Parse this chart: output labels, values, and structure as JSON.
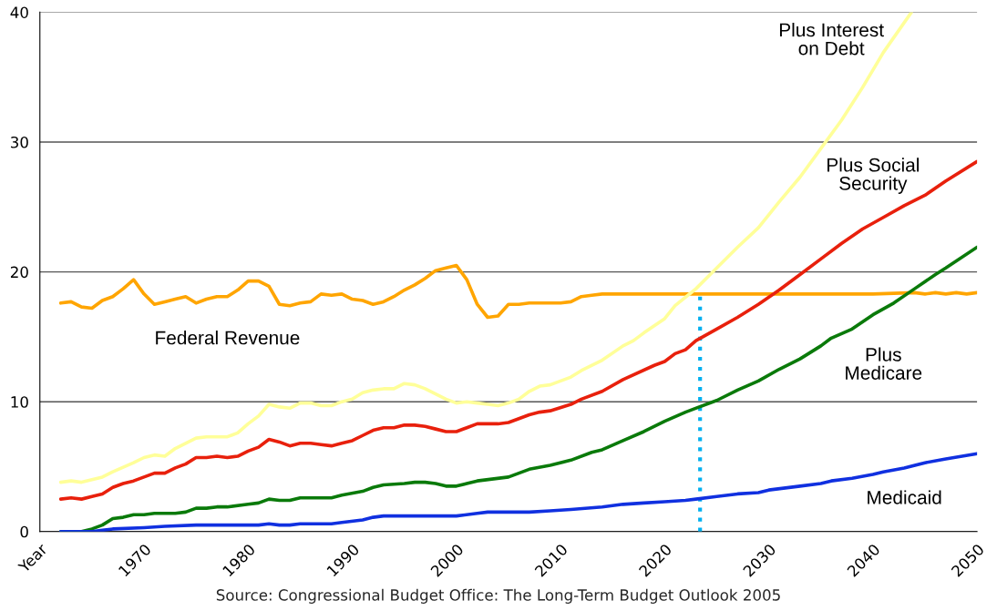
{
  "chart_data": {
    "type": "line",
    "xlim": [
      1960,
      2050
    ],
    "xticks": [
      {
        "value": 1960,
        "label": "Year"
      },
      1970,
      1980,
      1990,
      2000,
      2010,
      2020,
      2030,
      2040,
      2050
    ],
    "ylim": [
      0,
      40
    ],
    "yticks": [
      0,
      10,
      20,
      30,
      40
    ],
    "grid": "y",
    "legend": false,
    "line_style": "solid",
    "marker": "none",
    "annotations": [
      "Source: Congressional Budget Office: The Long-Term Budget Outlook 2005"
    ],
    "series": [
      {
        "name": "Federal Revenue",
        "color": "#ffa500",
        "x": [
          1962,
          1963,
          1964,
          1965,
          1966,
          1967,
          1968,
          1969,
          1970,
          1971,
          1972,
          1973,
          1974,
          1975,
          1976,
          1977,
          1978,
          1979,
          1980,
          1981,
          1982,
          1983,
          1984,
          1985,
          1986,
          1987,
          1988,
          1989,
          1990,
          1991,
          1992,
          1993,
          1994,
          1995,
          1996,
          1997,
          1998,
          1999,
          2000,
          2001,
          2002,
          2003,
          2004,
          2005,
          2006,
          2007,
          2010,
          2011,
          2012,
          2013,
          2014,
          2020,
          2030,
          2040,
          2044,
          2045,
          2046,
          2047,
          2048,
          2049,
          2050
        ],
        "values": [
          17.6,
          17.7,
          17.3,
          17.2,
          17.8,
          18.1,
          18.7,
          19.4,
          18.3,
          17.5,
          17.7,
          17.9,
          18.1,
          17.6,
          17.9,
          18.1,
          18.1,
          18.6,
          19.3,
          19.3,
          18.9,
          17.5,
          17.4,
          17.6,
          17.7,
          18.3,
          18.2,
          18.3,
          17.9,
          17.8,
          17.5,
          17.7,
          18.1,
          18.6,
          19.0,
          19.5,
          20.1,
          20.3,
          20.5,
          19.4,
          17.5,
          16.5,
          16.6,
          17.5,
          17.5,
          17.6,
          17.6,
          17.7,
          18.1,
          18.2,
          18.3,
          18.3,
          18.3,
          18.3,
          18.4,
          18.3,
          18.4,
          18.3,
          18.4,
          18.3,
          18.4
        ]
      },
      {
        "name": "Plus Interest\non Debt",
        "color": "#ffff99",
        "x": [
          1962,
          1963,
          1964,
          1966,
          1967,
          1969,
          1970,
          1971,
          1972,
          1973,
          1974,
          1975,
          1976,
          1978,
          1979,
          1980,
          1981,
          1982,
          1983,
          1984,
          1985,
          1986,
          1987,
          1988,
          1989,
          1990,
          1991,
          1992,
          1993,
          1994,
          1995,
          1996,
          1997,
          1998,
          1999,
          2000,
          2001,
          2002,
          2003,
          2004,
          2005,
          2006,
          2007,
          2008,
          2009,
          2011,
          2012,
          2014,
          2016,
          2017,
          2018,
          2020,
          2021,
          2023,
          2025,
          2027,
          2029,
          2031,
          2033,
          2035,
          2037,
          2039,
          2041,
          2043.7
        ],
        "values": [
          3.8,
          3.9,
          3.8,
          4.2,
          4.6,
          5.3,
          5.7,
          5.9,
          5.8,
          6.4,
          6.8,
          7.2,
          7.3,
          7.3,
          7.6,
          8.3,
          8.9,
          9.8,
          9.6,
          9.5,
          9.9,
          9.9,
          9.7,
          9.7,
          10.0,
          10.2,
          10.7,
          10.9,
          11.0,
          11.0,
          11.4,
          11.3,
          11.0,
          10.6,
          10.2,
          9.9,
          10.0,
          9.9,
          9.8,
          9.7,
          9.9,
          10.2,
          10.8,
          11.2,
          11.3,
          11.9,
          12.4,
          13.2,
          14.3,
          14.7,
          15.3,
          16.4,
          17.4,
          18.7,
          20.3,
          21.9,
          23.4,
          25.4,
          27.3,
          29.5,
          31.7,
          34.2,
          36.9,
          40.0
        ]
      },
      {
        "name": "Plus Social\nSecurity",
        "color": "#e8200c",
        "x": [
          1962,
          1963,
          1964,
          1965,
          1966,
          1967,
          1968,
          1969,
          1970,
          1971,
          1972,
          1973,
          1974,
          1975,
          1976,
          1977,
          1978,
          1979,
          1980,
          1981,
          1982,
          1983,
          1984,
          1985,
          1986,
          1987,
          1988,
          1989,
          1990,
          1991,
          1992,
          1993,
          1994,
          1995,
          1996,
          1997,
          1998,
          1999,
          2000,
          2001,
          2002,
          2004,
          2005,
          2007,
          2008,
          2009,
          2011,
          2012,
          2014,
          2016,
          2019,
          2020,
          2021,
          2022,
          2023,
          2025,
          2027,
          2029,
          2031,
          2033,
          2035,
          2037,
          2039,
          2041,
          2043,
          2045,
          2047,
          2050
        ],
        "values": [
          2.5,
          2.6,
          2.5,
          2.7,
          2.9,
          3.4,
          3.7,
          3.9,
          4.2,
          4.5,
          4.5,
          4.9,
          5.2,
          5.7,
          5.7,
          5.8,
          5.7,
          5.8,
          6.2,
          6.5,
          7.1,
          6.9,
          6.6,
          6.8,
          6.8,
          6.7,
          6.6,
          6.8,
          7.0,
          7.4,
          7.8,
          8.0,
          8.0,
          8.2,
          8.2,
          8.1,
          7.9,
          7.7,
          7.7,
          8.0,
          8.3,
          8.3,
          8.4,
          9.0,
          9.2,
          9.3,
          9.8,
          10.2,
          10.8,
          11.7,
          12.8,
          13.1,
          13.7,
          14.0,
          14.7,
          15.6,
          16.5,
          17.5,
          18.6,
          19.8,
          21.0,
          22.2,
          23.3,
          24.2,
          25.1,
          25.9,
          27.0,
          28.5
        ]
      },
      {
        "name": "Plus\nMedicare",
        "color": "#0a7a0a",
        "x": [
          1962,
          1964,
          1965,
          1966,
          1967,
          1968,
          1969,
          1970,
          1971,
          1973,
          1974,
          1975,
          1976,
          1977,
          1978,
          1980,
          1981,
          1982,
          1983,
          1984,
          1985,
          1988,
          1989,
          1991,
          1992,
          1993,
          1995,
          1996,
          1997,
          1998,
          1999,
          2000,
          2001,
          2002,
          2005,
          2007,
          2009,
          2011,
          2013,
          2014,
          2016,
          2018,
          2020,
          2022,
          2025,
          2027,
          2029,
          2031,
          2033,
          2035,
          2036,
          2038,
          2040,
          2042,
          2044,
          2046,
          2047,
          2050
        ],
        "values": [
          0,
          0,
          0.2,
          0.5,
          1.0,
          1.1,
          1.3,
          1.3,
          1.4,
          1.4,
          1.5,
          1.8,
          1.8,
          1.9,
          1.9,
          2.1,
          2.2,
          2.5,
          2.4,
          2.4,
          2.6,
          2.6,
          2.8,
          3.1,
          3.4,
          3.6,
          3.7,
          3.8,
          3.8,
          3.7,
          3.5,
          3.5,
          3.7,
          3.9,
          4.2,
          4.8,
          5.1,
          5.5,
          6.1,
          6.3,
          7.0,
          7.7,
          8.5,
          9.2,
          10.1,
          10.9,
          11.6,
          12.5,
          13.3,
          14.3,
          14.9,
          15.6,
          16.7,
          17.6,
          18.7,
          19.8,
          20.3,
          21.9
        ]
      },
      {
        "name": "Medicaid",
        "color": "#1030e0",
        "x": [
          1962,
          1965,
          1966,
          1967,
          1970,
          1972,
          1975,
          1981,
          1982,
          1983,
          1984,
          1985,
          1988,
          1989,
          1991,
          1992,
          1993,
          2000,
          2002,
          2003,
          2007,
          2009,
          2011,
          2014,
          2016,
          2018,
          2020,
          2022,
          2023,
          2025,
          2027,
          2029,
          2030,
          2033,
          2035,
          2036,
          2038,
          2040,
          2041,
          2043,
          2045,
          2047,
          2050
        ],
        "values": [
          0,
          0,
          0.1,
          0.2,
          0.3,
          0.4,
          0.5,
          0.5,
          0.6,
          0.5,
          0.5,
          0.6,
          0.6,
          0.7,
          0.9,
          1.1,
          1.2,
          1.2,
          1.4,
          1.5,
          1.5,
          1.6,
          1.7,
          1.9,
          2.1,
          2.2,
          2.3,
          2.4,
          2.5,
          2.7,
          2.9,
          3.0,
          3.2,
          3.5,
          3.7,
          3.9,
          4.1,
          4.4,
          4.6,
          4.9,
          5.3,
          5.6,
          6.0
        ]
      },
      {
        "color": "#00b0f0",
        "line_style": "dotted",
        "x": [
          2023.4,
          2023.4
        ],
        "values": [
          0,
          18.3
        ]
      }
    ]
  }
}
